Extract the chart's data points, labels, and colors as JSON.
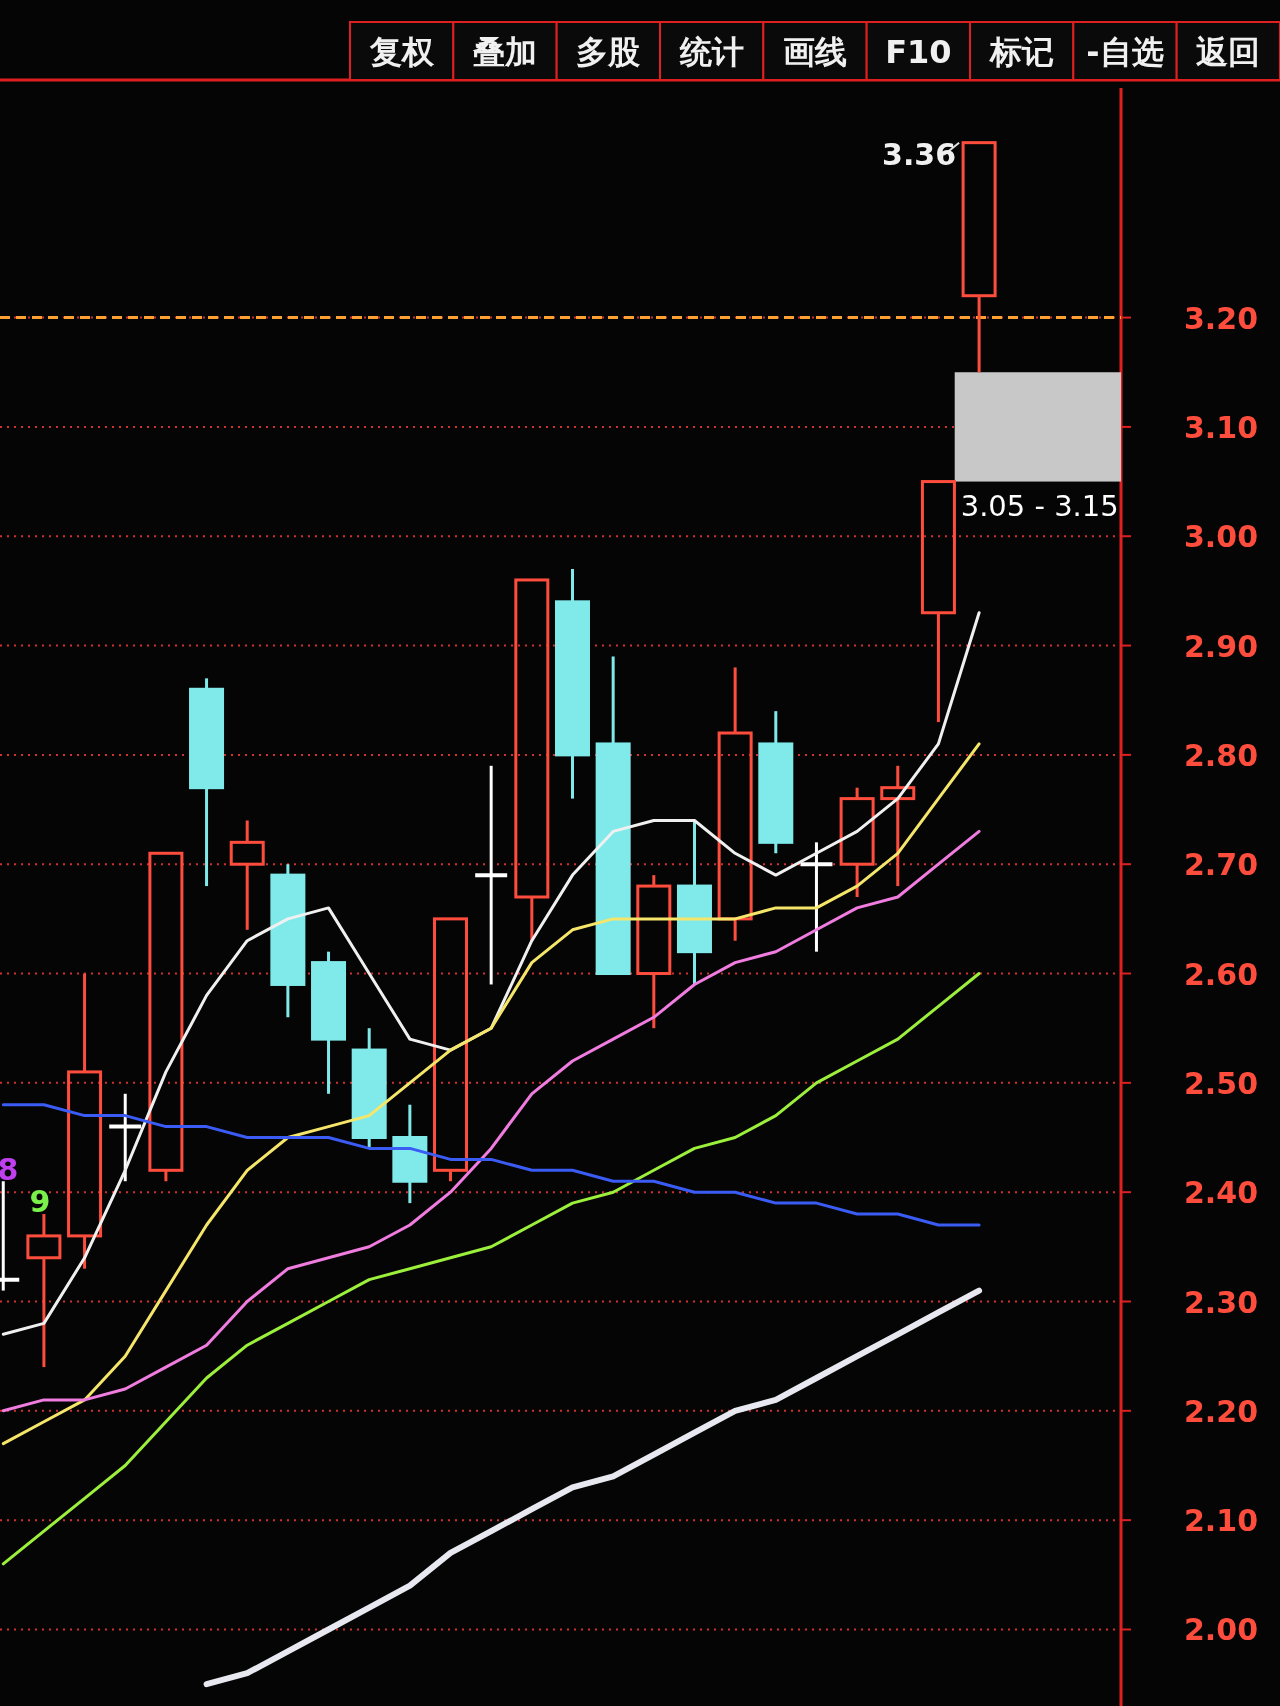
{
  "chart_data": {
    "type": "candlestick",
    "categories": [
      null,
      null,
      null,
      null,
      null,
      null,
      null,
      null,
      null,
      null,
      null,
      null,
      null,
      null,
      null,
      null,
      null,
      null,
      null,
      null,
      null,
      null,
      null,
      null,
      null
    ],
    "ohlc": [
      [
        2.32,
        2.41,
        2.31,
        2.32
      ],
      [
        2.34,
        2.38,
        2.24,
        2.36
      ],
      [
        2.36,
        2.6,
        2.33,
        2.51
      ],
      [
        2.46,
        2.49,
        2.41,
        2.46
      ],
      [
        2.42,
        2.71,
        2.41,
        2.71
      ],
      [
        2.86,
        2.87,
        2.68,
        2.77
      ],
      [
        2.7,
        2.74,
        2.64,
        2.72
      ],
      [
        2.69,
        2.7,
        2.56,
        2.59
      ],
      [
        2.61,
        2.62,
        2.49,
        2.54
      ],
      [
        2.53,
        2.55,
        2.44,
        2.45
      ],
      [
        2.45,
        2.48,
        2.39,
        2.41
      ],
      [
        2.42,
        2.65,
        2.41,
        2.65
      ],
      [
        2.69,
        2.79,
        2.59,
        2.69
      ],
      [
        2.67,
        2.96,
        2.63,
        2.96
      ],
      [
        2.94,
        2.97,
        2.76,
        2.8
      ],
      [
        2.81,
        2.89,
        2.6,
        2.6
      ],
      [
        2.6,
        2.69,
        2.55,
        2.68
      ],
      [
        2.68,
        2.74,
        2.59,
        2.62
      ],
      [
        2.65,
        2.88,
        2.63,
        2.82
      ],
      [
        2.81,
        2.84,
        2.71,
        2.72
      ],
      [
        2.7,
        2.72,
        2.62,
        2.7
      ],
      [
        2.7,
        2.77,
        2.67,
        2.76
      ],
      [
        2.76,
        2.79,
        2.68,
        2.77
      ],
      [
        2.93,
        3.05,
        2.83,
        3.05
      ],
      [
        3.22,
        3.36,
        3.15,
        3.36
      ]
    ],
    "colors": [
      "#ffffff",
      "#ff4d3d",
      "#ff4d3d",
      "#ffffff",
      "#ff4d3d",
      "#80eaea",
      "#ff4d3d",
      "#80eaea",
      "#80eaea",
      "#80eaea",
      "#80eaea",
      "#ff4d3d",
      "#ffffff",
      "#ff4d3d",
      "#80eaea",
      "#80eaea",
      "#ff4d3d",
      "#80eaea",
      "#ff4d3d",
      "#80eaea",
      "#ffffff",
      "#ff4d3d",
      "#ff4d3d",
      "#ff4d3d",
      "#ff4d3d"
    ],
    "series": [
      {
        "type": "line",
        "color": "#f0f0f0",
        "values": [
          2.27,
          2.28,
          2.34,
          2.42,
          2.51,
          2.58,
          2.63,
          2.65,
          2.66,
          2.6,
          2.54,
          2.53,
          2.55,
          2.63,
          2.69,
          2.73,
          2.74,
          2.74,
          2.71,
          2.69,
          2.71,
          2.73,
          2.76,
          2.81,
          2.93
        ]
      },
      {
        "type": "line",
        "color": "#f5e66a",
        "values": [
          2.17,
          2.19,
          2.21,
          2.25,
          2.31,
          2.37,
          2.42,
          2.45,
          2.46,
          2.47,
          2.5,
          2.53,
          2.55,
          2.61,
          2.64,
          2.65,
          2.65,
          2.65,
          2.65,
          2.66,
          2.66,
          2.68,
          2.71,
          2.76,
          2.81
        ]
      },
      {
        "type": "line",
        "color": "#f07ce0",
        "values": [
          2.2,
          2.21,
          2.21,
          2.22,
          2.24,
          2.26,
          2.3,
          2.33,
          2.34,
          2.35,
          2.37,
          2.4,
          2.44,
          2.49,
          2.52,
          2.54,
          2.56,
          2.59,
          2.61,
          2.62,
          2.64,
          2.66,
          2.67,
          2.7,
          2.73
        ]
      },
      {
        "type": "line",
        "color": "#9cf03c",
        "values": [
          2.06,
          2.09,
          2.12,
          2.15,
          2.19,
          2.23,
          2.26,
          2.28,
          2.3,
          2.32,
          2.33,
          2.34,
          2.35,
          2.37,
          2.39,
          2.4,
          2.42,
          2.44,
          2.45,
          2.47,
          2.5,
          2.52,
          2.54,
          2.57,
          2.6
        ]
      },
      {
        "type": "line",
        "color": "#3a5cf5",
        "values": [
          2.48,
          2.48,
          2.47,
          2.47,
          2.46,
          2.46,
          2.45,
          2.45,
          2.45,
          2.44,
          2.44,
          2.43,
          2.43,
          2.42,
          2.42,
          2.41,
          2.41,
          2.4,
          2.4,
          2.39,
          2.39,
          2.38,
          2.38,
          2.37,
          2.37
        ]
      },
      {
        "type": "line",
        "color": "#e8e8f0",
        "values": [
          null,
          null,
          null,
          null,
          null,
          1.95,
          1.96,
          1.98,
          2.0,
          2.02,
          2.04,
          2.07,
          2.09,
          2.11,
          2.13,
          2.14,
          2.16,
          2.18,
          2.2,
          2.21,
          2.23,
          2.25,
          2.27,
          2.29,
          2.31
        ]
      }
    ],
    "ylim": [
      1.93,
      3.41
    ],
    "yticks": [
      {
        "value": 2.0,
        "label": "2.00"
      },
      {
        "value": 2.1,
        "label": "2.10"
      },
      {
        "value": 2.2,
        "label": "2.20"
      },
      {
        "value": 2.3,
        "label": "2.30"
      },
      {
        "value": 2.4,
        "label": "2.40"
      },
      {
        "value": 2.5,
        "label": "2.50"
      },
      {
        "value": 2.6,
        "label": "2.60"
      },
      {
        "value": 2.7,
        "label": "2.70"
      },
      {
        "value": 2.8,
        "label": "2.80"
      },
      {
        "value": 2.9,
        "label": "2.90"
      },
      {
        "value": 3.0,
        "label": "3.00"
      },
      {
        "value": 3.1,
        "label": "3.10"
      },
      {
        "value": 3.2,
        "label": "3.20"
      }
    ],
    "grid": "y",
    "ref_lines": [
      {
        "axis": "y",
        "value": 3.2,
        "color": "#ffa030",
        "line_style": "dashed"
      }
    ],
    "bands": [
      {
        "axis": "y",
        "from": 3.05,
        "to": 3.15,
        "label": "3.05 - 3.15",
        "color": "#c8c8c8"
      }
    ],
    "annotations": [
      "复权",
      "叠加",
      "多股",
      "统计",
      "画线",
      "F10",
      "标记",
      "-自选",
      "返回",
      "3.36",
      "9",
      "8"
    ]
  }
}
